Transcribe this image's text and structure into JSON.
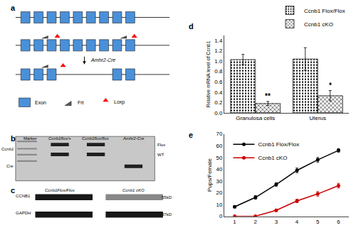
{
  "chart_data": [
    {
      "type": "diagram",
      "title": "a",
      "color": "#4a90d9",
      "annotations": [
        "Amhr2-Cre",
        "Exon",
        "Frt",
        "Loxp"
      ]
    },
    {
      "type": "diagram",
      "title": "b",
      "colors": [
        "#c8c8c8",
        "#202020"
      ],
      "annotations": [
        "Marker",
        "Ccnb1flox/+",
        "Ccnb1flox/flox",
        "Amhr2-Cre",
        "Ccnb1",
        "Flox",
        "WT",
        "Cre"
      ]
    },
    {
      "type": "diagram",
      "title": "c",
      "annotations": [
        "Ccnb1Flox/Flox",
        "Ccnb1 cKO",
        "CCNB1",
        "55kD",
        "GAPDH",
        "37kD"
      ]
    },
    {
      "type": "bar",
      "title": "d",
      "ylabel": "Relative mRNA level of Ccnb1",
      "categories": [
        "Granulosa cells",
        "Uterus"
      ],
      "series": [
        {
          "name": "Ccnb1 Flox/Flox",
          "color": "#c0c0c0",
          "values": [
            1.03,
            1.04
          ],
          "errors": [
            0.1,
            0.22
          ]
        },
        {
          "name": "Ccnb1 cKO",
          "color": "#808080",
          "values": [
            0.18,
            0.33
          ],
          "errors": [
            0.04,
            0.1
          ]
        }
      ],
      "annotations": [
        {
          "category": "Granulosa cells",
          "series": "Ccnb1 cKO",
          "text": "**"
        },
        {
          "category": "Uterus",
          "series": "Ccnb1 cKO",
          "text": "*"
        }
      ],
      "ylim": [
        0,
        1.5
      ],
      "yticks": [
        {
          "value": 0,
          "label": "0.0"
        },
        0.2,
        0.4,
        0.6,
        0.8,
        {
          "value": 1.0,
          "label": "1.0"
        },
        1.2,
        1.4
      ],
      "grid": false,
      "legend": "upper right"
    },
    {
      "type": "line",
      "title": "e",
      "ylabel": "Pups/Female",
      "x": [
        1,
        2,
        3,
        4,
        5,
        6
      ],
      "series": [
        {
          "name": "Ccnb1 Flox/Flox",
          "color": "#000000",
          "values": [
            8,
            16,
            27,
            39,
            48,
            56
          ],
          "errors": [
            1.0,
            1.5,
            1.5,
            2.0,
            2.0,
            1.5
          ]
        },
        {
          "name": "Ccnb1 cKO",
          "color": "#cc0000",
          "values": [
            0,
            0,
            5,
            13,
            19,
            26
          ],
          "errors": [
            0,
            0,
            1.0,
            1.5,
            2.0,
            2.0
          ]
        }
      ],
      "marker": "circle",
      "xlim": [
        0.5,
        6.5
      ],
      "xticks": [
        1,
        2,
        3,
        4,
        5,
        6
      ],
      "ylim": [
        0,
        70
      ],
      "yticks": [
        0,
        10,
        20,
        30,
        40,
        50,
        60,
        70
      ],
      "grid": false,
      "legend": "upper left"
    }
  ]
}
